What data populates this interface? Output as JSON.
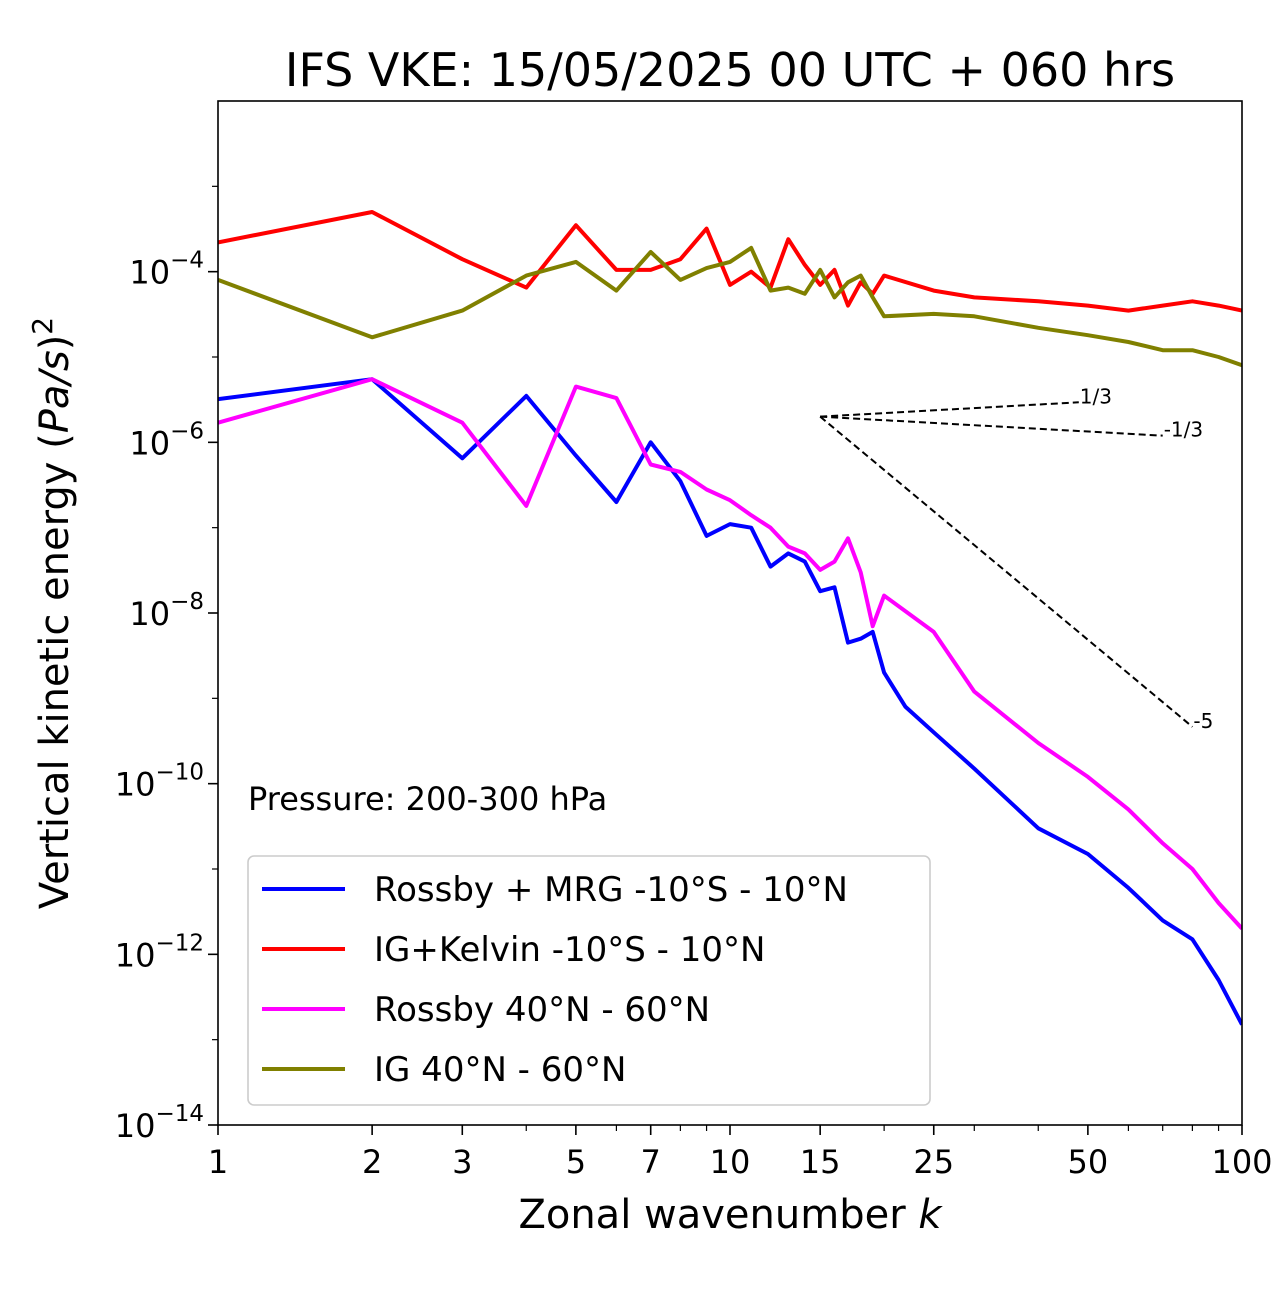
{
  "chart_data": {
    "type": "line",
    "title": "IFS VKE: 15/05/2025 00 UTC + 060 hrs",
    "xlabel_text": "Zonal wavenumber ",
    "xlabel_var": "k",
    "ylabel_pre": "Vertical kinetic energy (",
    "ylabel_var": "Pa/s",
    "ylabel_post": ")",
    "ylabel_sup": "2",
    "annotation": "Pressure: 200-300 hPa",
    "xscale": "log",
    "yscale": "log",
    "xlim": [
      1,
      100
    ],
    "ylim": [
      1e-14,
      0.01
    ],
    "xticks": [
      1,
      2,
      3,
      5,
      7,
      10,
      15,
      25,
      50,
      100
    ],
    "xtick_labels": [
      "1",
      "2",
      "3",
      "5",
      "7",
      "10",
      "15",
      "25",
      "50",
      "100"
    ],
    "yticks": [
      {
        "value": 0.0001,
        "base": "10",
        "exp": "−4"
      },
      {
        "value": 1e-06,
        "base": "10",
        "exp": "−6"
      },
      {
        "value": 1e-08,
        "base": "10",
        "exp": "−8"
      },
      {
        "value": 1e-10,
        "base": "10",
        "exp": "−10"
      },
      {
        "value": 1e-12,
        "base": "10",
        "exp": "−12"
      },
      {
        "value": 1e-14,
        "base": "10",
        "exp": "−14"
      }
    ],
    "grid": false,
    "legend_position": "lower-left",
    "series": [
      {
        "name": "Rossby + MRG -10°S - 10°N",
        "color": "#0000ff",
        "x": [
          1,
          2,
          3,
          4,
          5,
          6,
          7,
          8,
          9,
          10,
          11,
          12,
          13,
          14,
          15,
          16,
          17,
          18,
          19,
          20,
          22,
          25,
          30,
          40,
          50,
          60,
          70,
          80,
          90,
          100
        ],
        "y": [
          3.2e-06,
          5.5e-06,
          6.5e-07,
          3.5e-06,
          7e-07,
          2e-07,
          1e-06,
          3.5e-07,
          8e-08,
          1.1e-07,
          1e-07,
          3.5e-08,
          5e-08,
          4e-08,
          1.8e-08,
          2e-08,
          4.5e-09,
          5e-09,
          6e-09,
          2e-09,
          8e-10,
          4e-10,
          1.5e-10,
          3e-11,
          1.5e-11,
          6e-12,
          2.5e-12,
          1.5e-12,
          5e-13,
          1.5e-13
        ]
      },
      {
        "name": "IG+Kelvin -10°S - 10°N",
        "color": "#ff0000",
        "x": [
          1,
          2,
          3,
          4,
          5,
          6,
          7,
          8,
          9,
          10,
          11,
          12,
          13,
          14,
          15,
          16,
          17,
          18,
          19,
          20,
          25,
          30,
          40,
          50,
          60,
          70,
          80,
          90,
          100
        ],
        "y": [
          0.00022,
          0.0005,
          0.00014,
          6.5e-05,
          0.00035,
          0.000105,
          0.000105,
          0.00014,
          0.00032,
          7e-05,
          0.0001,
          6.5e-05,
          0.00024,
          0.00012,
          7e-05,
          0.000105,
          4e-05,
          7.5e-05,
          5.5e-05,
          9e-05,
          6e-05,
          5e-05,
          4.5e-05,
          4e-05,
          3.5e-05,
          4e-05,
          4.5e-05,
          4e-05,
          3.5e-05
        ]
      },
      {
        "name": "Rossby 40°N - 60°N",
        "color": "#ff00ff",
        "x": [
          1,
          2,
          3,
          4,
          5,
          6,
          7,
          8,
          9,
          10,
          11,
          12,
          13,
          14,
          15,
          16,
          17,
          18,
          19,
          20,
          25,
          30,
          40,
          50,
          60,
          70,
          80,
          90,
          100
        ],
        "y": [
          1.7e-06,
          5.5e-06,
          1.7e-06,
          1.8e-07,
          4.5e-06,
          3.3e-06,
          5.5e-07,
          4.5e-07,
          2.8e-07,
          2.1e-07,
          1.4e-07,
          1e-07,
          6e-08,
          5e-08,
          3.2e-08,
          4e-08,
          7.5e-08,
          3e-08,
          7e-09,
          1.6e-08,
          6e-09,
          1.2e-09,
          3e-10,
          1.2e-10,
          5e-11,
          2e-11,
          1e-11,
          4e-12,
          2e-12
        ]
      },
      {
        "name": "IG 40°N - 60°N",
        "color": "#808000",
        "x": [
          1,
          2,
          3,
          4,
          5,
          6,
          7,
          8,
          9,
          10,
          11,
          12,
          13,
          14,
          15,
          16,
          17,
          18,
          19,
          20,
          25,
          30,
          40,
          50,
          60,
          70,
          80,
          90,
          100
        ],
        "y": [
          8e-05,
          1.7e-05,
          3.5e-05,
          9e-05,
          0.00013,
          6e-05,
          0.00017,
          8e-05,
          0.00011,
          0.00013,
          0.00019,
          6e-05,
          6.5e-05,
          5.5e-05,
          0.000105,
          5e-05,
          7.5e-05,
          9e-05,
          5e-05,
          3e-05,
          3.2e-05,
          3e-05,
          2.2e-05,
          1.8e-05,
          1.5e-05,
          1.2e-05,
          1.2e-05,
          1e-05,
          8e-06
        ]
      }
    ],
    "reference_slopes": [
      {
        "label": "1/3",
        "slope": 0.333333,
        "x0": 15,
        "y0": 2e-06,
        "x1": 48
      },
      {
        "label": "-1/3",
        "slope": -0.333333,
        "x0": 15,
        "y0": 2e-06,
        "x1": 70
      },
      {
        "label": "-5",
        "slope": -5,
        "x0": 15,
        "y0": 2e-06,
        "x1": 80
      }
    ]
  }
}
